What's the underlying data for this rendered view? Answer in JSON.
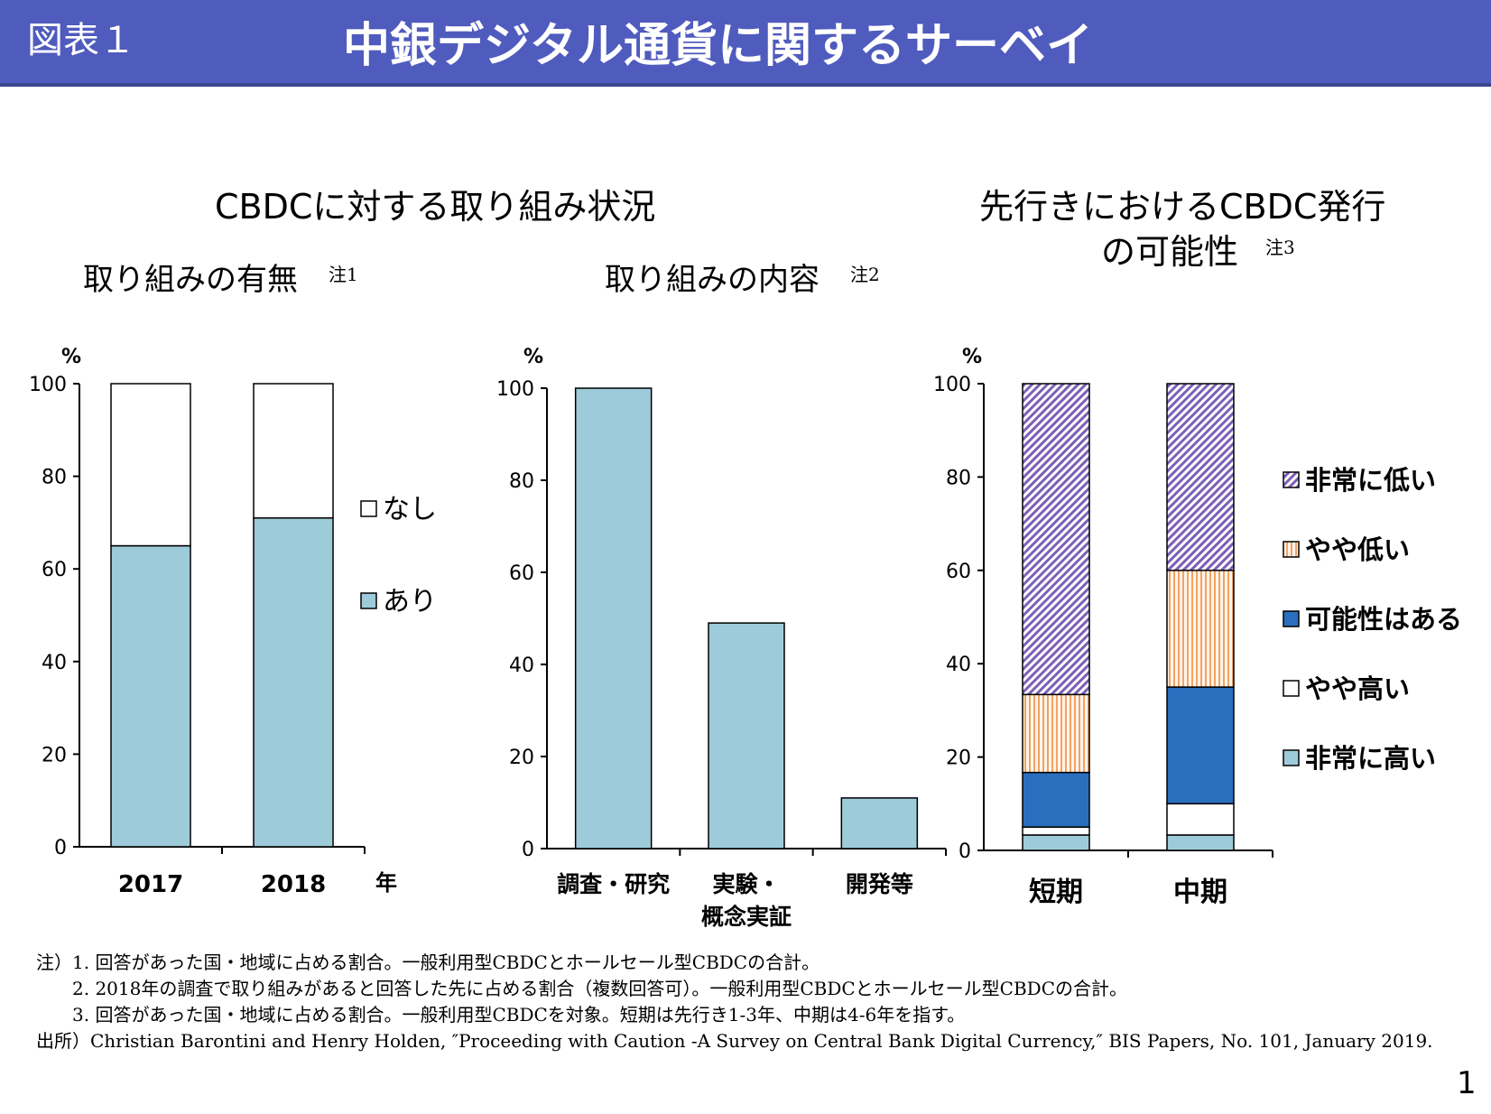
{
  "header": {
    "label": "図表１",
    "title": "中銀デジタル通貨に関するサーベイ"
  },
  "section_left": {
    "title": "CBDCに対する取り組み状況"
  },
  "section_right": {
    "title_line1": "先行きにおけるCBDC発行",
    "title_line2": "の可能性",
    "note": "注3"
  },
  "charts": [
    {
      "subtitle": "取り組みの有無",
      "note": "注1",
      "unit": "%",
      "x_suffix": "年"
    },
    {
      "subtitle": "取り組みの内容",
      "note": "注2",
      "unit": "%"
    },
    {
      "unit": "%"
    }
  ],
  "colors": {
    "header": "#4f5bbd",
    "light_blue": "#9ecbd9",
    "dark_blue": "#2a6fbd",
    "purple": "#7d5fb5",
    "orange": "#f2a365"
  },
  "chart_data": [
    {
      "type": "bar",
      "stacked": true,
      "categories": [
        "2017",
        "2018"
      ],
      "series": [
        {
          "name": "あり",
          "values": [
            65,
            71
          ]
        },
        {
          "name": "なし",
          "values": [
            35,
            29
          ]
        }
      ],
      "ylim": [
        0,
        100
      ],
      "yticks": [
        "0",
        "20",
        "40",
        "60",
        "80",
        "100"
      ],
      "legend": "right"
    },
    {
      "type": "bar",
      "categories": [
        "調査・研究",
        "実験・概念実証",
        "開発等"
      ],
      "category_lines": [
        [
          "調査・研究"
        ],
        [
          "実験・",
          "概念実証"
        ],
        [
          "開発等"
        ]
      ],
      "values": [
        100,
        49,
        11
      ],
      "ylim": [
        0,
        100
      ],
      "yticks": [
        "0",
        "20",
        "40",
        "60",
        "80",
        "100"
      ]
    },
    {
      "type": "bar",
      "stacked": true,
      "categories": [
        "短期",
        "中期"
      ],
      "series": [
        {
          "name": "非常に高い",
          "values": [
            3.3,
            3.3
          ]
        },
        {
          "name": "やや高い",
          "values": [
            1.7,
            6.7
          ]
        },
        {
          "name": "可能性はある",
          "values": [
            11.7,
            25
          ]
        },
        {
          "name": "やや低い",
          "values": [
            16.7,
            25
          ]
        },
        {
          "name": "非常に低い",
          "values": [
            66.6,
            40
          ]
        }
      ],
      "ylim": [
        0,
        100
      ],
      "yticks": [
        "0",
        "20",
        "40",
        "60",
        "80",
        "100"
      ],
      "legend": "right"
    }
  ],
  "notes": [
    "注）1. 回答があった国・地域に占める割合。一般利用型CBDCとホールセール型CBDCの合計。",
    "　　2. 2018年の調査で取り組みがあると回答した先に占める割合（複数回答可）。一般利用型CBDCとホールセール型CBDCの合計。",
    "　　3. 回答があった国・地域に占める割合。一般利用型CBDCを対象。短期は先行き1-3年、中期は4-6年を指す。",
    "出所）Christian Barontini and Henry Holden, ″Proceeding with Caution -A Survey on Central Bank Digital Currency,″ BIS Papers, No. 101, January 2019."
  ],
  "page_number": "1"
}
